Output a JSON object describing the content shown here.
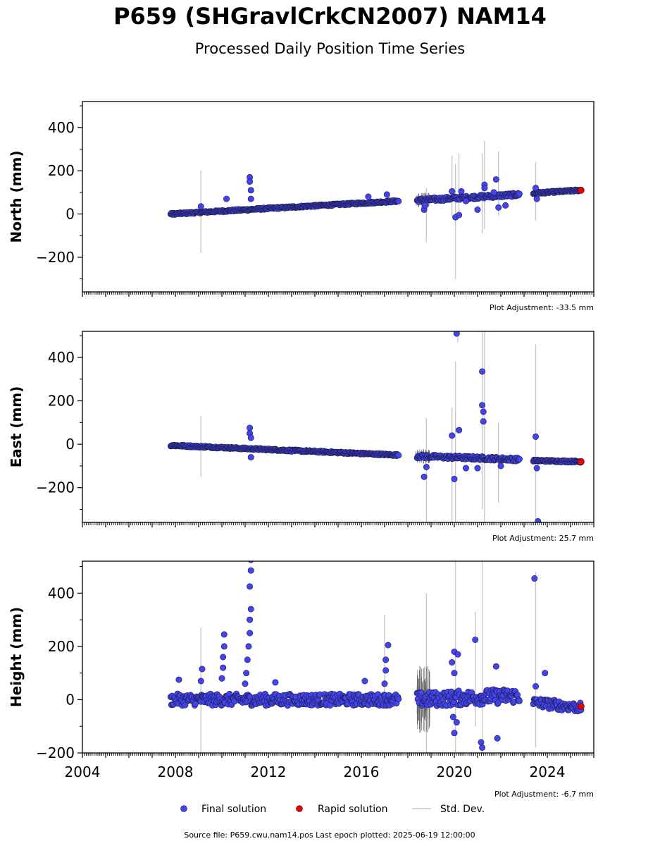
{
  "chart_data": {
    "type": "scatter",
    "title": "P659 (SHGravlCrkCN2007) NAM14",
    "subtitle": "Processed Daily Position Time Series",
    "x_axis": {
      "range": [
        2004,
        2026
      ],
      "tick_labels": [
        "2004",
        "2008",
        "2012",
        "2016",
        "2020",
        "2024"
      ],
      "major_ticks": [
        2004,
        2005,
        2006,
        2007,
        2008,
        2009,
        2010,
        2011,
        2012,
        2013,
        2014,
        2015,
        2016,
        2017,
        2018,
        2019,
        2020,
        2021,
        2022,
        2023,
        2024,
        2025,
        2026
      ],
      "minor_ticks_per_year": 12
    },
    "legend": {
      "placement": "bottom-center",
      "entries": [
        {
          "label": "Final solution",
          "color": "#4444ee",
          "kind": "point"
        },
        {
          "label": "Rapid solution",
          "color": "#ee0000",
          "kind": "point"
        },
        {
          "label": "Std. Dev.",
          "color": "#c8c8c8",
          "kind": "line"
        }
      ]
    },
    "footer": "Source file: P659.cwu.nam14.pos  Last epoch plotted: 2025-06-19 12:00:00",
    "colors": {
      "final": "#4444ee",
      "rapid": "#ee0000",
      "stddev": "#c8c8c8",
      "edge": "#1a1a40"
    },
    "panels": [
      {
        "ylabel": "North (mm)",
        "ylim": [
          -360,
          520
        ],
        "yticks": [
          -200,
          0,
          200,
          400
        ],
        "adjustment": "Plot Adjustment: -33.5 mm",
        "trend": [
          [
            2007.8,
            0
          ],
          [
            2017.6,
            60
          ],
          [
            2018.4,
            63
          ],
          [
            2022.8,
            90
          ],
          [
            2023.4,
            96
          ],
          [
            2025.45,
            110
          ]
        ],
        "segments": [
          [
            2007.8,
            2017.6,
            4
          ],
          [
            2018.4,
            2022.8,
            8
          ],
          [
            2023.4,
            2025.45,
            4
          ]
        ],
        "events": [
          {
            "x": 2009.1,
            "y": 35
          },
          {
            "x": 2010.2,
            "y": 70
          },
          {
            "x": 2011.2,
            "y": 170
          },
          {
            "x": 2011.2,
            "y": 150
          },
          {
            "x": 2011.25,
            "y": 110
          },
          {
            "x": 2011.25,
            "y": 70
          },
          {
            "x": 2016.3,
            "y": 80
          },
          {
            "x": 2017.1,
            "y": 90
          }
        ],
        "outliers": [
          {
            "x": 2018.7,
            "y": 20
          },
          {
            "x": 2018.75,
            "y": 40
          },
          {
            "x": 2019.9,
            "y": 105
          },
          {
            "x": 2020.05,
            "y": -15
          },
          {
            "x": 2020.2,
            "y": -5
          },
          {
            "x": 2020.3,
            "y": 105
          },
          {
            "x": 2020.5,
            "y": 60
          },
          {
            "x": 2021.0,
            "y": 20
          },
          {
            "x": 2021.3,
            "y": 135
          },
          {
            "x": 2021.3,
            "y": 120
          },
          {
            "x": 2021.7,
            "y": 100
          },
          {
            "x": 2021.8,
            "y": 160
          },
          {
            "x": 2021.9,
            "y": 30
          },
          {
            "x": 2022.2,
            "y": 40
          },
          {
            "x": 2023.5,
            "y": 120
          },
          {
            "x": 2023.55,
            "y": 70
          }
        ],
        "errorbars": [
          {
            "x": 2009.1,
            "lo": -180,
            "hi": 200
          },
          {
            "x": 2018.8,
            "lo": -130,
            "hi": 120
          },
          {
            "x": 2019.9,
            "lo": -10,
            "hi": 270
          },
          {
            "x": 2020.05,
            "lo": -300,
            "hi": 230
          },
          {
            "x": 2020.2,
            "lo": -10,
            "hi": 280
          },
          {
            "x": 2021.2,
            "lo": -90,
            "hi": 280
          },
          {
            "x": 2021.3,
            "lo": -70,
            "hi": 340
          },
          {
            "x": 2021.9,
            "lo": -10,
            "hi": 290
          },
          {
            "x": 2023.5,
            "lo": -30,
            "hi": 240
          }
        ],
        "rapid": {
          "x": 2025.45,
          "y": 110
        }
      },
      {
        "ylabel": "East (mm)",
        "ylim": [
          -360,
          520
        ],
        "yticks": [
          -200,
          0,
          200,
          400
        ],
        "adjustment": "Plot Adjustment: 25.7 mm",
        "trend": [
          [
            2007.8,
            -5
          ],
          [
            2017.6,
            -50
          ],
          [
            2018.4,
            -55
          ],
          [
            2022.8,
            -70
          ],
          [
            2023.4,
            -75
          ],
          [
            2025.45,
            -80
          ]
        ],
        "segments": [
          [
            2007.8,
            2017.6,
            4
          ],
          [
            2018.4,
            2022.8,
            8
          ],
          [
            2023.4,
            2025.45,
            4
          ]
        ],
        "events": [
          {
            "x": 2011.2,
            "y": 75
          },
          {
            "x": 2011.2,
            "y": 50
          },
          {
            "x": 2011.25,
            "y": 30
          },
          {
            "x": 2011.25,
            "y": -60
          }
        ],
        "outliers": [
          {
            "x": 2018.7,
            "y": -150
          },
          {
            "x": 2018.8,
            "y": -105
          },
          {
            "x": 2019.9,
            "y": 40
          },
          {
            "x": 2020.0,
            "y": -160
          },
          {
            "x": 2020.1,
            "y": 510
          },
          {
            "x": 2020.2,
            "y": 65
          },
          {
            "x": 2020.5,
            "y": -110
          },
          {
            "x": 2021.0,
            "y": -110
          },
          {
            "x": 2021.2,
            "y": 335
          },
          {
            "x": 2021.2,
            "y": 180
          },
          {
            "x": 2021.25,
            "y": 150
          },
          {
            "x": 2021.25,
            "y": 105
          },
          {
            "x": 2022.0,
            "y": -100
          },
          {
            "x": 2023.5,
            "y": 35
          },
          {
            "x": 2023.55,
            "y": -110
          },
          {
            "x": 2023.6,
            "y": -355
          }
        ],
        "errorbars": [
          {
            "x": 2009.1,
            "lo": -150,
            "hi": 130
          },
          {
            "x": 2018.8,
            "lo": -360,
            "hi": 120
          },
          {
            "x": 2019.9,
            "lo": -360,
            "hi": 170
          },
          {
            "x": 2020.05,
            "lo": -360,
            "hi": 380
          },
          {
            "x": 2020.15,
            "lo": 470,
            "hi": 520
          },
          {
            "x": 2021.2,
            "lo": -300,
            "hi": 520
          },
          {
            "x": 2021.3,
            "lo": -360,
            "hi": 520
          },
          {
            "x": 2021.9,
            "lo": -270,
            "hi": 100
          },
          {
            "x": 2023.5,
            "lo": -360,
            "hi": 460
          }
        ],
        "rapid": {
          "x": 2025.45,
          "y": -80
        }
      },
      {
        "ylabel": "Height (mm)",
        "ylim": [
          -200,
          520
        ],
        "yticks": [
          -200,
          0,
          200,
          400
        ],
        "adjustment": "Plot Adjustment: -6.7 mm",
        "trend": [
          [
            2007.8,
            0
          ],
          [
            2017.6,
            0
          ],
          [
            2018.4,
            0
          ],
          [
            2022.8,
            15
          ],
          [
            2023.4,
            -10
          ],
          [
            2025.45,
            -30
          ]
        ],
        "segments": [
          [
            2007.8,
            2017.6,
            22
          ],
          [
            2018.4,
            2022.8,
            28
          ],
          [
            2023.4,
            2025.45,
            18
          ]
        ],
        "events": [
          {
            "x": 2008.15,
            "y": 75
          },
          {
            "x": 2009.15,
            "y": 115
          },
          {
            "x": 2009.1,
            "y": 70
          },
          {
            "x": 2010.1,
            "y": 245
          },
          {
            "x": 2010.1,
            "y": 200
          },
          {
            "x": 2010.05,
            "y": 160
          },
          {
            "x": 2010.05,
            "y": 120
          },
          {
            "x": 2010.0,
            "y": 80
          },
          {
            "x": 2011.25,
            "y": 525
          },
          {
            "x": 2011.25,
            "y": 485
          },
          {
            "x": 2011.2,
            "y": 425
          },
          {
            "x": 2011.25,
            "y": 340
          },
          {
            "x": 2011.2,
            "y": 300
          },
          {
            "x": 2011.2,
            "y": 250
          },
          {
            "x": 2011.15,
            "y": 200
          },
          {
            "x": 2011.1,
            "y": 150
          },
          {
            "x": 2011.05,
            "y": 100
          },
          {
            "x": 2011.0,
            "y": 60
          },
          {
            "x": 2012.3,
            "y": 65
          },
          {
            "x": 2016.15,
            "y": 70
          },
          {
            "x": 2017.05,
            "y": 150
          },
          {
            "x": 2017.05,
            "y": 110
          },
          {
            "x": 2017.15,
            "y": 205
          },
          {
            "x": 2017.0,
            "y": 60
          }
        ],
        "outliers": [
          {
            "x": 2019.9,
            "y": 140
          },
          {
            "x": 2020.0,
            "y": 180
          },
          {
            "x": 2020.15,
            "y": 170
          },
          {
            "x": 2020.0,
            "y": -125
          },
          {
            "x": 2020.1,
            "y": -85
          },
          {
            "x": 2019.95,
            "y": -65
          },
          {
            "x": 2020.0,
            "y": 100
          },
          {
            "x": 2020.9,
            "y": 225
          },
          {
            "x": 2021.2,
            "y": -180
          },
          {
            "x": 2021.15,
            "y": -160
          },
          {
            "x": 2021.8,
            "y": 125
          },
          {
            "x": 2021.85,
            "y": -145
          },
          {
            "x": 2023.45,
            "y": 455
          },
          {
            "x": 2023.9,
            "y": 100
          },
          {
            "x": 2023.5,
            "y": 50
          }
        ],
        "errorbars": [
          {
            "x": 2009.1,
            "lo": -200,
            "hi": 270
          },
          {
            "x": 2018.8,
            "lo": -200,
            "hi": 400
          },
          {
            "x": 2020.05,
            "lo": -200,
            "hi": 520
          },
          {
            "x": 2020.9,
            "lo": -100,
            "hi": 330
          },
          {
            "x": 2021.2,
            "lo": -200,
            "hi": 520
          },
          {
            "x": 2017.0,
            "lo": -10,
            "hi": 320
          },
          {
            "x": 2023.5,
            "lo": -180,
            "hi": 480
          }
        ],
        "rapid": {
          "x": 2025.45,
          "y": -25
        }
      }
    ]
  }
}
